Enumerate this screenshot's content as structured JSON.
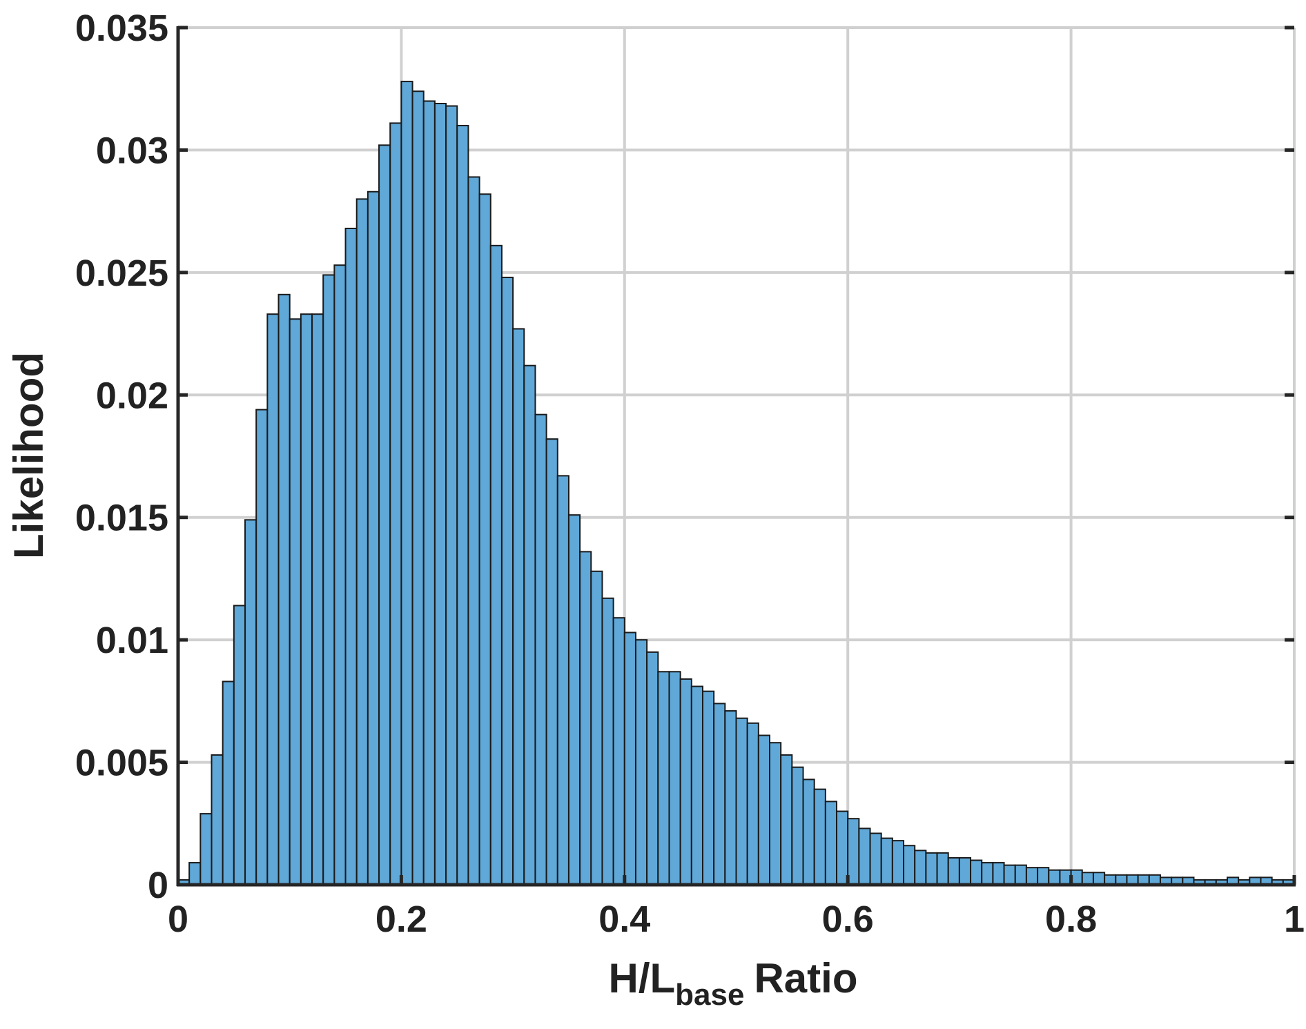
{
  "chart_data": {
    "type": "bar",
    "subtype": "histogram",
    "xlabel": {
      "main": "H/L",
      "sub": "base",
      "suffix": "Ratio"
    },
    "ylabel": "Likelihood",
    "xlim": [
      0,
      1
    ],
    "ylim": [
      0,
      0.035
    ],
    "grid": true,
    "bar_color": "#5fa8d8",
    "bar_edge_color": "#1a1a1a",
    "bin_width": 0.01,
    "x_ticks": [
      "0",
      "0.2",
      "0.4",
      "0.6",
      "0.8",
      "1"
    ],
    "y_ticks": [
      "0",
      "0.005",
      "0.01",
      "0.015",
      "0.02",
      "0.025",
      "0.03",
      "0.035"
    ],
    "bin_starts": [
      0.0,
      0.01,
      0.02,
      0.03,
      0.04,
      0.05,
      0.06,
      0.07,
      0.08,
      0.09,
      0.1,
      0.11,
      0.12,
      0.13,
      0.14,
      0.15,
      0.16,
      0.17,
      0.18,
      0.19,
      0.2,
      0.21,
      0.22,
      0.23,
      0.24,
      0.25,
      0.26,
      0.27,
      0.28,
      0.29,
      0.3,
      0.31,
      0.32,
      0.33,
      0.34,
      0.35,
      0.36,
      0.37,
      0.38,
      0.39,
      0.4,
      0.41,
      0.42,
      0.43,
      0.44,
      0.45,
      0.46,
      0.47,
      0.48,
      0.49,
      0.5,
      0.51,
      0.52,
      0.53,
      0.54,
      0.55,
      0.56,
      0.57,
      0.58,
      0.59,
      0.6,
      0.61,
      0.62,
      0.63,
      0.64,
      0.65,
      0.66,
      0.67,
      0.68,
      0.69,
      0.7,
      0.71,
      0.72,
      0.73,
      0.74,
      0.75,
      0.76,
      0.77,
      0.78,
      0.79,
      0.8,
      0.81,
      0.82,
      0.83,
      0.84,
      0.85,
      0.86,
      0.87,
      0.88,
      0.89,
      0.9,
      0.91,
      0.92,
      0.93,
      0.94,
      0.95,
      0.96,
      0.97,
      0.98,
      0.99
    ],
    "values": [
      0.0002,
      0.0009,
      0.0029,
      0.0053,
      0.0083,
      0.0114,
      0.0149,
      0.0194,
      0.0233,
      0.0241,
      0.0231,
      0.0233,
      0.0233,
      0.0249,
      0.0253,
      0.0268,
      0.028,
      0.0283,
      0.0302,
      0.0311,
      0.0328,
      0.0324,
      0.032,
      0.0319,
      0.0318,
      0.031,
      0.0289,
      0.0282,
      0.0261,
      0.0248,
      0.0227,
      0.0212,
      0.0192,
      0.0182,
      0.0167,
      0.0151,
      0.0136,
      0.0128,
      0.0117,
      0.0109,
      0.0103,
      0.01,
      0.0095,
      0.0087,
      0.0087,
      0.0084,
      0.0081,
      0.0079,
      0.0074,
      0.0071,
      0.0068,
      0.0066,
      0.0061,
      0.0058,
      0.0053,
      0.0048,
      0.0043,
      0.0039,
      0.0034,
      0.003,
      0.0027,
      0.0023,
      0.0021,
      0.0019,
      0.0018,
      0.0016,
      0.0014,
      0.0013,
      0.0013,
      0.0011,
      0.0011,
      0.001,
      0.0009,
      0.0009,
      0.0008,
      0.0008,
      0.0007,
      0.0007,
      0.0006,
      0.0006,
      0.0006,
      0.0005,
      0.0005,
      0.0004,
      0.0004,
      0.0004,
      0.0004,
      0.0004,
      0.0003,
      0.0003,
      0.0003,
      0.0002,
      0.0002,
      0.0002,
      0.0003,
      0.0002,
      0.0003,
      0.0003,
      0.0002,
      0.0002
    ]
  }
}
